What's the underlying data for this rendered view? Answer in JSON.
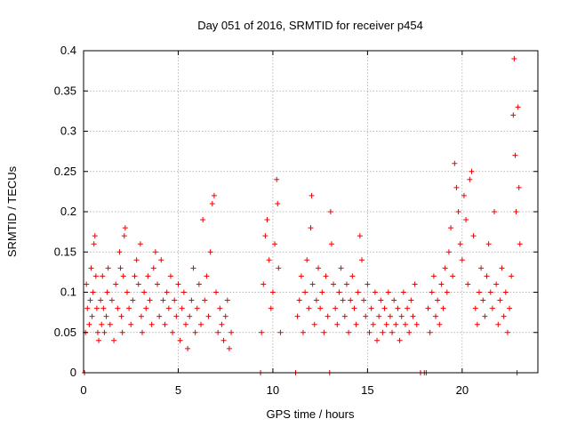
{
  "chart_data": {
    "type": "scatter",
    "title": "Day 051 of 2016, SRMTID for receiver p454",
    "xlabel": "GPS time / hours",
    "ylabel": "SRMTID / TECUs",
    "xlim": [
      0,
      24
    ],
    "ylim": [
      0,
      0.4
    ],
    "x_ticks": [
      0,
      5,
      10,
      15,
      20
    ],
    "x_tick_labels": [
      "0",
      "5",
      "10",
      "15",
      "20"
    ],
    "y_ticks": [
      0,
      0.05,
      0.1,
      0.15,
      0.2,
      0.25,
      0.3,
      0.35,
      0.4
    ],
    "y_tick_labels": [
      "0",
      "0.05",
      "0.1",
      "0.15",
      "0.2",
      "0.25",
      "0.3",
      "0.35",
      "0.4"
    ],
    "grid": true,
    "marker": "+",
    "marker_color": "#ee0000",
    "series": [
      {
        "name": "SRMTID",
        "points": [
          [
            0.05,
            0.0
          ],
          [
            0.1,
            0.05
          ],
          [
            0.15,
            0.11
          ],
          [
            0.2,
            0.08
          ],
          [
            0.3,
            0.06
          ],
          [
            0.35,
            0.09
          ],
          [
            0.4,
            0.13
          ],
          [
            0.45,
            0.07
          ],
          [
            0.5,
            0.1
          ],
          [
            0.55,
            0.16
          ],
          [
            0.6,
            0.17
          ],
          [
            0.65,
            0.12
          ],
          [
            0.7,
            0.08
          ],
          [
            0.75,
            0.05
          ],
          [
            0.8,
            0.04
          ],
          [
            0.9,
            0.09
          ],
          [
            0.95,
            0.06
          ],
          [
            1.0,
            0.12
          ],
          [
            1.05,
            0.08
          ],
          [
            1.1,
            0.05
          ],
          [
            1.2,
            0.07
          ],
          [
            1.25,
            0.1
          ],
          [
            1.3,
            0.13
          ],
          [
            1.4,
            0.06
          ],
          [
            1.5,
            0.09
          ],
          [
            1.6,
            0.04
          ],
          [
            1.7,
            0.11
          ],
          [
            1.8,
            0.08
          ],
          [
            1.9,
            0.15
          ],
          [
            1.95,
            0.13
          ],
          [
            2.0,
            0.07
          ],
          [
            2.05,
            0.05
          ],
          [
            2.1,
            0.12
          ],
          [
            2.15,
            0.17
          ],
          [
            2.2,
            0.18
          ],
          [
            2.3,
            0.1
          ],
          [
            2.4,
            0.08
          ],
          [
            2.5,
            0.06
          ],
          [
            2.6,
            0.09
          ],
          [
            2.7,
            0.12
          ],
          [
            2.8,
            0.14
          ],
          [
            2.9,
            0.11
          ],
          [
            3.0,
            0.16
          ],
          [
            3.05,
            0.07
          ],
          [
            3.1,
            0.05
          ],
          [
            3.2,
            0.1
          ],
          [
            3.3,
            0.08
          ],
          [
            3.4,
            0.12
          ],
          [
            3.5,
            0.09
          ],
          [
            3.6,
            0.06
          ],
          [
            3.7,
            0.13
          ],
          [
            3.8,
            0.15
          ],
          [
            3.9,
            0.11
          ],
          [
            4.0,
            0.07
          ],
          [
            4.1,
            0.14
          ],
          [
            4.2,
            0.09
          ],
          [
            4.3,
            0.06
          ],
          [
            4.4,
            0.1
          ],
          [
            4.5,
            0.08
          ],
          [
            4.6,
            0.12
          ],
          [
            4.7,
            0.05
          ],
          [
            4.8,
            0.09
          ],
          [
            4.9,
            0.07
          ],
          [
            5.0,
            0.11
          ],
          [
            5.1,
            0.04
          ],
          [
            5.2,
            0.08
          ],
          [
            5.3,
            0.1
          ],
          [
            5.4,
            0.06
          ],
          [
            5.5,
            0.03
          ],
          [
            5.6,
            0.07
          ],
          [
            5.7,
            0.09
          ],
          [
            5.8,
            0.13
          ],
          [
            5.9,
            0.05
          ],
          [
            6.0,
            0.08
          ],
          [
            6.1,
            0.11
          ],
          [
            6.2,
            0.06
          ],
          [
            6.3,
            0.19
          ],
          [
            6.4,
            0.09
          ],
          [
            6.5,
            0.12
          ],
          [
            6.6,
            0.07
          ],
          [
            6.7,
            0.15
          ],
          [
            6.8,
            0.21
          ],
          [
            6.9,
            0.22
          ],
          [
            7.0,
            0.1
          ],
          [
            7.1,
            0.05
          ],
          [
            7.2,
            0.08
          ],
          [
            7.3,
            0.06
          ],
          [
            7.4,
            0.04
          ],
          [
            7.5,
            0.07
          ],
          [
            7.6,
            0.09
          ],
          [
            7.7,
            0.03
          ],
          [
            7.8,
            0.05
          ],
          [
            9.35,
            0.0
          ],
          [
            9.4,
            0.05
          ],
          [
            9.5,
            0.11
          ],
          [
            9.6,
            0.17
          ],
          [
            9.7,
            0.19
          ],
          [
            9.8,
            0.14
          ],
          [
            9.9,
            0.08
          ],
          [
            10.0,
            0.1
          ],
          [
            10.1,
            0.16
          ],
          [
            10.2,
            0.24
          ],
          [
            10.25,
            0.21
          ],
          [
            10.3,
            0.13
          ],
          [
            10.4,
            0.05
          ],
          [
            11.2,
            0.0
          ],
          [
            11.3,
            0.07
          ],
          [
            11.4,
            0.09
          ],
          [
            11.5,
            0.12
          ],
          [
            11.6,
            0.05
          ],
          [
            11.7,
            0.1
          ],
          [
            11.8,
            0.14
          ],
          [
            11.9,
            0.08
          ],
          [
            12.0,
            0.18
          ],
          [
            12.05,
            0.22
          ],
          [
            12.1,
            0.11
          ],
          [
            12.2,
            0.06
          ],
          [
            12.3,
            0.09
          ],
          [
            12.4,
            0.13
          ],
          [
            12.5,
            0.08
          ],
          [
            12.6,
            0.1
          ],
          [
            12.7,
            0.05
          ],
          [
            12.8,
            0.12
          ],
          [
            12.9,
            0.07
          ],
          [
            13.0,
            0.0
          ],
          [
            13.05,
            0.2
          ],
          [
            13.1,
            0.16
          ],
          [
            13.2,
            0.11
          ],
          [
            13.3,
            0.08
          ],
          [
            13.4,
            0.06
          ],
          [
            13.5,
            0.1
          ],
          [
            13.6,
            0.13
          ],
          [
            13.7,
            0.09
          ],
          [
            13.8,
            0.07
          ],
          [
            13.9,
            0.11
          ],
          [
            14.0,
            0.05
          ],
          [
            14.1,
            0.09
          ],
          [
            14.2,
            0.12
          ],
          [
            14.3,
            0.08
          ],
          [
            14.4,
            0.06
          ],
          [
            14.5,
            0.1
          ],
          [
            14.6,
            0.17
          ],
          [
            14.7,
            0.14
          ],
          [
            14.8,
            0.09
          ],
          [
            14.9,
            0.07
          ],
          [
            15.0,
            0.11
          ],
          [
            15.1,
            0.05
          ],
          [
            15.2,
            0.08
          ],
          [
            15.3,
            0.06
          ],
          [
            15.4,
            0.1
          ],
          [
            15.5,
            0.04
          ],
          [
            15.6,
            0.07
          ],
          [
            15.7,
            0.09
          ],
          [
            15.8,
            0.05
          ],
          [
            15.9,
            0.08
          ],
          [
            16.0,
            0.06
          ],
          [
            16.1,
            0.1
          ],
          [
            16.2,
            0.07
          ],
          [
            16.3,
            0.05
          ],
          [
            16.4,
            0.09
          ],
          [
            16.5,
            0.06
          ],
          [
            16.6,
            0.08
          ],
          [
            16.7,
            0.04
          ],
          [
            16.8,
            0.07
          ],
          [
            16.9,
            0.1
          ],
          [
            17.0,
            0.06
          ],
          [
            17.1,
            0.08
          ],
          [
            17.2,
            0.05
          ],
          [
            17.3,
            0.09
          ],
          [
            17.4,
            0.07
          ],
          [
            17.5,
            0.11
          ],
          [
            17.6,
            0.06
          ],
          [
            17.8,
            0.0
          ],
          [
            18.0,
            0.0
          ],
          [
            18.1,
            0.0
          ],
          [
            18.2,
            0.08
          ],
          [
            18.3,
            0.05
          ],
          [
            18.4,
            0.1
          ],
          [
            18.5,
            0.12
          ],
          [
            18.6,
            0.07
          ],
          [
            18.7,
            0.09
          ],
          [
            18.8,
            0.06
          ],
          [
            18.9,
            0.11
          ],
          [
            19.0,
            0.08
          ],
          [
            19.1,
            0.13
          ],
          [
            19.2,
            0.1
          ],
          [
            19.3,
            0.15
          ],
          [
            19.4,
            0.18
          ],
          [
            19.5,
            0.12
          ],
          [
            19.6,
            0.26
          ],
          [
            19.7,
            0.23
          ],
          [
            19.8,
            0.2
          ],
          [
            19.9,
            0.16
          ],
          [
            20.0,
            0.14
          ],
          [
            20.1,
            0.22
          ],
          [
            20.2,
            0.19
          ],
          [
            20.3,
            0.11
          ],
          [
            20.4,
            0.24
          ],
          [
            20.5,
            0.25
          ],
          [
            20.6,
            0.17
          ],
          [
            20.7,
            0.08
          ],
          [
            20.8,
            0.06
          ],
          [
            20.9,
            0.1
          ],
          [
            21.0,
            0.13
          ],
          [
            21.1,
            0.09
          ],
          [
            21.2,
            0.07
          ],
          [
            21.3,
            0.12
          ],
          [
            21.4,
            0.16
          ],
          [
            21.5,
            0.1
          ],
          [
            21.6,
            0.08
          ],
          [
            21.7,
            0.2
          ],
          [
            21.8,
            0.11
          ],
          [
            21.9,
            0.06
          ],
          [
            22.0,
            0.09
          ],
          [
            22.1,
            0.13
          ],
          [
            22.2,
            0.07
          ],
          [
            22.3,
            0.1
          ],
          [
            22.4,
            0.05
          ],
          [
            22.5,
            0.08
          ],
          [
            22.6,
            0.12
          ],
          [
            22.7,
            0.32
          ],
          [
            22.75,
            0.39
          ],
          [
            22.8,
            0.27
          ],
          [
            22.85,
            0.2
          ],
          [
            22.9,
            0.0
          ],
          [
            22.95,
            0.33
          ],
          [
            23.0,
            0.23
          ],
          [
            23.05,
            0.16
          ]
        ]
      }
    ]
  }
}
